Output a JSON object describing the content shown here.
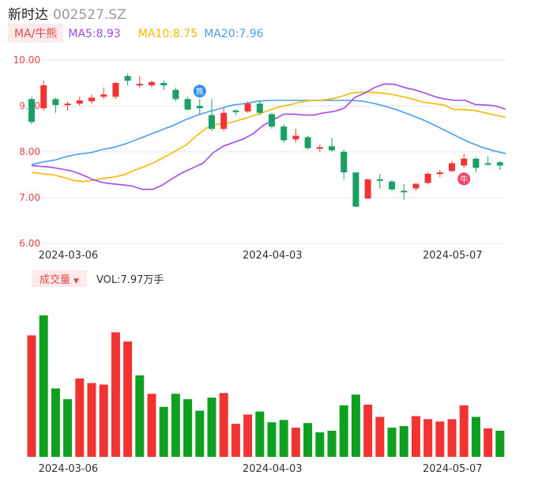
{
  "header": {
    "name": "新时达",
    "code": "002527.SZ"
  },
  "ma": {
    "badge": "MA/牛熊",
    "ma5": "MA5:8.93",
    "ma10": "MA10:8.75",
    "ma20": "MA20:7.96"
  },
  "volume": {
    "badge": "成交量",
    "value": "VOL:7.97万手"
  },
  "colors": {
    "up": "#f03434",
    "down": "#1aa064",
    "ma5": "#a148f0",
    "ma10": "#f5b800",
    "ma20": "#4a9ff0",
    "vol_down": "#10a020"
  },
  "chart_data": {
    "type": "candlestick",
    "price_axis": {
      "ticks": [
        "10.00",
        "9.00",
        "8.00",
        "7.00",
        "6.00"
      ],
      "ylim": [
        6.0,
        10.0
      ]
    },
    "x_ticks": [
      {
        "index": 2,
        "label": "2024-03-06"
      },
      {
        "index": 19,
        "label": "2024-04-03"
      },
      {
        "index": 34,
        "label": "2024-05-07"
      }
    ],
    "markers": [
      {
        "index": 14,
        "label": "熊",
        "color": "#2d8cf0"
      },
      {
        "index": 36,
        "label": "牛",
        "color": "#f0446a"
      }
    ],
    "candles": [
      [
        9.15,
        8.65,
        9.2,
        8.6
      ],
      [
        8.95,
        9.45,
        9.55,
        8.9
      ],
      [
        9.15,
        9.02,
        9.18,
        8.85
      ],
      [
        9.03,
        9.05,
        9.1,
        8.9
      ],
      [
        9.05,
        9.12,
        9.2,
        9.0
      ],
      [
        9.1,
        9.18,
        9.25,
        9.05
      ],
      [
        9.2,
        9.25,
        9.4,
        9.15
      ],
      [
        9.2,
        9.5,
        9.52,
        9.15
      ],
      [
        9.65,
        9.55,
        9.7,
        9.45
      ],
      [
        9.47,
        9.48,
        9.65,
        9.4
      ],
      [
        9.45,
        9.52,
        9.55,
        9.4
      ],
      [
        9.5,
        9.45,
        9.55,
        9.35
      ],
      [
        9.35,
        9.15,
        9.4,
        9.1
      ],
      [
        9.15,
        8.92,
        9.2,
        8.9
      ],
      [
        9.0,
        8.95,
        9.15,
        8.8
      ],
      [
        8.8,
        8.5,
        9.15,
        8.45
      ],
      [
        8.5,
        8.85,
        8.95,
        8.45
      ],
      [
        8.9,
        8.88,
        8.92,
        8.8
      ],
      [
        8.88,
        9.05,
        9.1,
        8.85
      ],
      [
        9.05,
        8.85,
        9.1,
        8.8
      ],
      [
        8.82,
        8.55,
        8.85,
        8.5
      ],
      [
        8.55,
        8.25,
        8.6,
        8.2
      ],
      [
        8.27,
        8.35,
        8.5,
        8.2
      ],
      [
        8.32,
        8.08,
        8.35,
        8.05
      ],
      [
        8.08,
        8.1,
        8.15,
        8.0
      ],
      [
        8.12,
        8.03,
        8.3,
        8.0
      ],
      [
        8.0,
        7.55,
        8.05,
        7.4
      ],
      [
        7.55,
        6.8,
        7.55,
        6.8
      ],
      [
        6.98,
        7.4,
        7.4,
        6.98
      ],
      [
        7.4,
        7.38,
        7.52,
        7.2
      ],
      [
        7.35,
        7.18,
        7.38,
        7.15
      ],
      [
        7.15,
        7.12,
        7.3,
        6.95
      ],
      [
        7.2,
        7.3,
        7.32,
        7.15
      ],
      [
        7.32,
        7.52,
        7.55,
        7.3
      ],
      [
        7.52,
        7.55,
        7.6,
        7.45
      ],
      [
        7.58,
        7.75,
        7.8,
        7.55
      ],
      [
        7.7,
        7.85,
        7.95,
        7.65
      ],
      [
        7.85,
        7.65,
        7.88,
        7.55
      ],
      [
        7.75,
        7.73,
        7.9,
        7.7
      ],
      [
        7.77,
        7.7,
        7.8,
        7.6
      ]
    ],
    "ma5": [
      7.7,
      7.68,
      7.66,
      7.62,
      7.58,
      7.5,
      7.4,
      7.33,
      7.3,
      7.28,
      7.25,
      7.18,
      7.18,
      7.28,
      7.42,
      7.55,
      7.65,
      7.75,
      7.98,
      8.12,
      8.2,
      8.28,
      8.4,
      8.58,
      8.7,
      8.82,
      8.82,
      8.8,
      8.8,
      8.85,
      8.88,
      8.95,
      9.18,
      9.28,
      9.4,
      9.48,
      9.47,
      9.4,
      9.35,
      9.28,
      9.2,
      9.15,
      9.12,
      9.12,
      9.03,
      9.02,
      9.0,
      8.93
    ],
    "ma10": [
      7.55,
      7.52,
      7.5,
      7.45,
      7.38,
      7.35,
      7.38,
      7.42,
      7.45,
      7.5,
      7.6,
      7.68,
      7.78,
      7.9,
      8.02,
      8.15,
      8.35,
      8.52,
      8.6,
      8.62,
      8.68,
      8.75,
      8.82,
      8.9,
      8.98,
      9.02,
      9.08,
      9.12,
      9.12,
      9.15,
      9.2,
      9.28,
      9.3,
      9.3,
      9.28,
      9.25,
      9.2,
      9.15,
      9.08,
      9.05,
      9.02,
      8.92,
      8.92,
      8.9,
      8.85,
      8.8,
      8.75
    ],
    "ma20": [
      7.72,
      7.78,
      7.82,
      7.9,
      7.95,
      7.98,
      8.05,
      8.1,
      8.18,
      8.28,
      8.38,
      8.48,
      8.58,
      8.7,
      8.8,
      8.88,
      8.95,
      9.02,
      9.05,
      9.1,
      9.12,
      9.12,
      9.12,
      9.12,
      9.12,
      9.12,
      9.12,
      9.12,
      9.1,
      9.05,
      8.98,
      8.9,
      8.8,
      8.7,
      8.58,
      8.45,
      8.32,
      8.2,
      8.1,
      8.02,
      7.96
    ],
    "volumes": [
      {
        "v": 158,
        "dir": "up"
      },
      {
        "v": 184,
        "dir": "down"
      },
      {
        "v": 89,
        "dir": "down"
      },
      {
        "v": 75,
        "dir": "down"
      },
      {
        "v": 102,
        "dir": "up"
      },
      {
        "v": 96,
        "dir": "up"
      },
      {
        "v": 94,
        "dir": "up"
      },
      {
        "v": 162,
        "dir": "up"
      },
      {
        "v": 150,
        "dir": "up"
      },
      {
        "v": 106,
        "dir": "down"
      },
      {
        "v": 82,
        "dir": "up"
      },
      {
        "v": 65,
        "dir": "down"
      },
      {
        "v": 82,
        "dir": "down"
      },
      {
        "v": 75,
        "dir": "down"
      },
      {
        "v": 60,
        "dir": "down"
      },
      {
        "v": 77,
        "dir": "down"
      },
      {
        "v": 83,
        "dir": "up"
      },
      {
        "v": 43,
        "dir": "up"
      },
      {
        "v": 55,
        "dir": "up"
      },
      {
        "v": 59,
        "dir": "down"
      },
      {
        "v": 45,
        "dir": "down"
      },
      {
        "v": 48,
        "dir": "down"
      },
      {
        "v": 38,
        "dir": "up"
      },
      {
        "v": 44,
        "dir": "down"
      },
      {
        "v": 32,
        "dir": "down"
      },
      {
        "v": 34,
        "dir": "down"
      },
      {
        "v": 67,
        "dir": "down"
      },
      {
        "v": 81,
        "dir": "down"
      },
      {
        "v": 68,
        "dir": "up"
      },
      {
        "v": 52,
        "dir": "up"
      },
      {
        "v": 38,
        "dir": "down"
      },
      {
        "v": 40,
        "dir": "down"
      },
      {
        "v": 53,
        "dir": "up"
      },
      {
        "v": 49,
        "dir": "up"
      },
      {
        "v": 46,
        "dir": "up"
      },
      {
        "v": 49,
        "dir": "up"
      },
      {
        "v": 67,
        "dir": "up"
      },
      {
        "v": 52,
        "dir": "down"
      },
      {
        "v": 37,
        "dir": "up"
      },
      {
        "v": 34,
        "dir": "down"
      }
    ]
  }
}
